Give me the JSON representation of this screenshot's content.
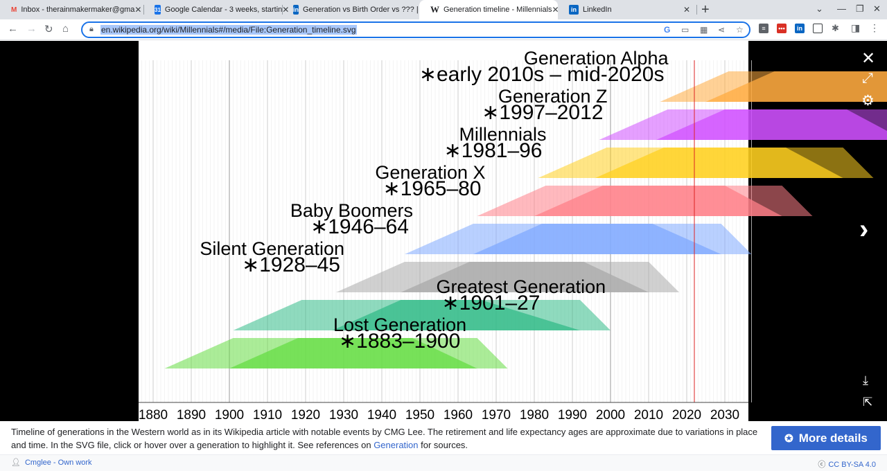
{
  "tabs": [
    {
      "title": "Inbox - therainmakermaker@gma",
      "icon": "gmail-icon",
      "glyph": "M",
      "color": "#ea4335"
    },
    {
      "title": "Google Calendar - 3 weeks, startin",
      "icon": "calendar-icon",
      "glyph": "31",
      "color": "#1a73e8"
    },
    {
      "title": "Generation vs Birth Order vs ??? |",
      "icon": "linkedin-icon",
      "glyph": "in",
      "color": "#0a66c2"
    },
    {
      "title": "Generation timeline - Millennials",
      "icon": "wikipedia-icon",
      "glyph": "W",
      "color": "#202124"
    },
    {
      "title": "LinkedIn",
      "icon": "linkedin-icon",
      "glyph": "in",
      "color": "#0a66c2"
    }
  ],
  "address": {
    "url": "en.wikipedia.org/wiki/Millennials#/media/File:Generation_timeline.svg"
  },
  "caption": {
    "text_before": "Timeline of generations in the Western world as in its Wikipedia article with notable events by CMG Lee. The retirement and life expectancy ages are approximate due to variations in place and time. In the SVG file, click or hover over a generation to highlight it. See references on ",
    "link": "Generation",
    "text_after": " for sources."
  },
  "more_details_label": "More details",
  "author": "Cmglee - Own work",
  "license": "CC BY-SA 4.0",
  "colors": {
    "accent": "#3366cc",
    "omnibox_border": "#1a73e8",
    "now_line": "#dd2222"
  },
  "chart_data": {
    "type": "timeline",
    "x_ticks": [
      1880,
      1890,
      1900,
      1910,
      1920,
      1930,
      1940,
      1950,
      1960,
      1970,
      1980,
      1990,
      2000,
      2010,
      2020,
      2030
    ],
    "xlim": [
      1877,
      2037
    ],
    "current_year_line": 2022,
    "generations": [
      {
        "name": "Generation Alpha",
        "years": "∗early 2010s – mid-2020s",
        "start": 2013,
        "end": 2025,
        "color": "#ffab40",
        "label_side": "left"
      },
      {
        "name": "Generation Z",
        "years": "∗1997–2012",
        "start": 1997,
        "end": 2012,
        "color": "#d050ff",
        "label_side": "left"
      },
      {
        "name": "Millennials",
        "years": "∗1981–96",
        "start": 1981,
        "end": 1996,
        "color": "#ffd020",
        "label_side": "left"
      },
      {
        "name": "Generation X",
        "years": "∗1965–80",
        "start": 1965,
        "end": 1980,
        "color": "#ff8088",
        "label_side": "left"
      },
      {
        "name": "Baby Boomers",
        "years": "∗1946–64",
        "start": 1946,
        "end": 1964,
        "color": "#80aaff",
        "label_side": "left"
      },
      {
        "name": "Silent Generation",
        "years": "∗1928–45",
        "start": 1928,
        "end": 1945,
        "color": "#aaaaaa",
        "label_side": "left"
      },
      {
        "name": "Greatest Generation",
        "years": "∗1901–27",
        "start": 1901,
        "end": 1927,
        "color": "#33bb88",
        "label_side": "right"
      },
      {
        "name": "Lost Generation",
        "years": "∗1883–1900",
        "start": 1883,
        "end": 1900,
        "color": "#66dd44",
        "label_side": "right"
      }
    ]
  }
}
